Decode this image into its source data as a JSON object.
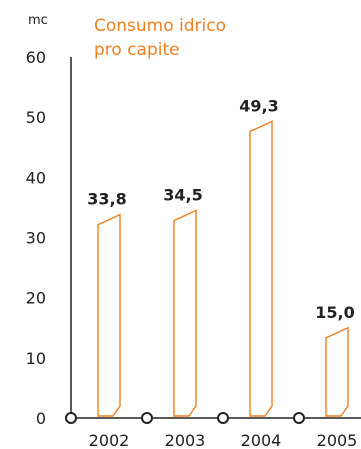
{
  "chart_data": {
    "type": "bar",
    "title_lines": [
      "Consumo idrico",
      "pro capite"
    ],
    "ylabel": "mc",
    "xlabel": "",
    "categories": [
      "2002",
      "2003",
      "2004",
      "2005"
    ],
    "values": [
      33.8,
      34.5,
      49.3,
      15.0
    ],
    "data_labels": [
      "33,8",
      "34,5",
      "49,3",
      "15,0"
    ],
    "yticks": [
      "0",
      "10",
      "20",
      "30",
      "40",
      "50",
      "60"
    ],
    "ylim": [
      0,
      60
    ],
    "grid": false,
    "legend": "none"
  },
  "colors": {
    "accent": "#F07F1E",
    "axis": "#222222",
    "text": "#222222"
  }
}
